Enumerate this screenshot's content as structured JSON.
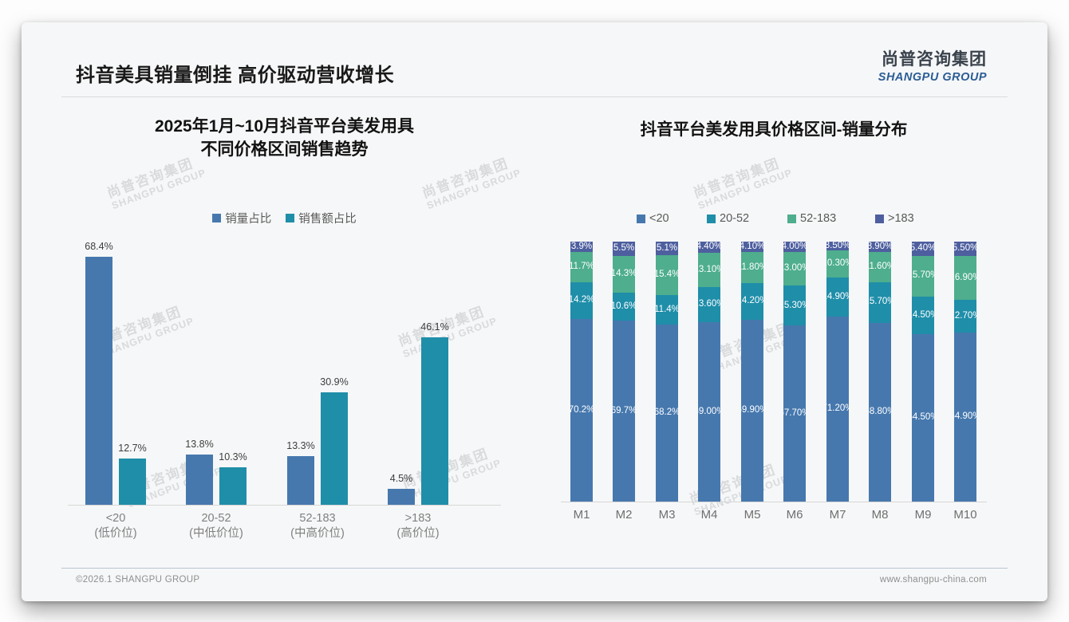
{
  "slide": {
    "title": "抖音美具销量倒挂 高价驱动营收增长",
    "logo": {
      "cn": "尚普咨询集团",
      "en": "SHANGPU GROUP"
    },
    "footer": {
      "left": "©2026.1 SHANGPU GROUP",
      "right": "www.shangpu-china.com"
    },
    "watermark": {
      "line1": "尚普咨询集团",
      "line2": "SHANGPU GROUP"
    }
  },
  "colors": {
    "blue": "#4678AE",
    "teal": "#1F8EA9",
    "green": "#4EAE8D",
    "slate": "#4E5F9F",
    "axis": "#d7d7d7",
    "slide_bg": "#f6f7f8"
  },
  "chart_data": [
    {
      "type": "bar",
      "title_lines": [
        "2025年1月~10月抖音平台美发用具",
        "不同价格区间销售趋势"
      ],
      "categories": [
        "<20",
        "20-52",
        "52-183",
        ">183"
      ],
      "category_sublabels": [
        "(低价位)",
        "(中低价位)",
        "(中高价位)",
        "(高价位)"
      ],
      "series": [
        {
          "name": "销量占比",
          "color": "#4678AE",
          "values": [
            68.4,
            13.8,
            13.3,
            4.5
          ],
          "labels": [
            "68.4%",
            "13.8%",
            "13.3%",
            "4.5%"
          ]
        },
        {
          "name": "销售额占比",
          "color": "#1F8EA9",
          "values": [
            12.7,
            10.3,
            30.9,
            46.1
          ],
          "labels": [
            "12.7%",
            "10.3%",
            "30.9%",
            "46.1%"
          ]
        }
      ],
      "unit": "%",
      "ylim": [
        0,
        75
      ],
      "grid": false,
      "legend_position": "top"
    },
    {
      "type": "stacked-bar-100",
      "title": "抖音平台美发用具价格区间-销量分布",
      "categories": [
        "M1",
        "M2",
        "M3",
        "M4",
        "M5",
        "M6",
        "M7",
        "M8",
        "M9",
        "M10"
      ],
      "series": [
        {
          "name": "<20",
          "color": "#4678AE",
          "values": [
            70.2,
            69.7,
            68.2,
            69.0,
            69.9,
            67.7,
            71.2,
            68.8,
            64.5,
            64.9
          ],
          "labels": [
            "70.2%",
            "69.7%",
            "68.2%",
            "69.00%",
            "69.90%",
            "67.70%",
            "71.20%",
            "68.80%",
            "64.50%",
            "64.90%"
          ]
        },
        {
          "name": "20-52",
          "color": "#1F8EA9",
          "values": [
            14.2,
            10.6,
            11.4,
            13.6,
            14.2,
            15.3,
            14.9,
            15.7,
            14.5,
            12.7
          ],
          "labels": [
            "14.2%",
            "10.6%",
            "11.4%",
            "13.60%",
            "14.20%",
            "15.30%",
            "14.90%",
            "15.70%",
            "14.50%",
            "12.70%"
          ]
        },
        {
          "name": "52-183",
          "color": "#4EAE8D",
          "values": [
            11.7,
            14.3,
            15.4,
            13.1,
            11.8,
            13.0,
            10.3,
            11.6,
            15.7,
            16.9
          ],
          "labels": [
            "11.7%",
            "14.3%",
            "15.4%",
            "13.10%",
            "11.80%",
            "13.00%",
            "10.30%",
            "11.60%",
            "15.70%",
            "16.90%"
          ]
        },
        {
          "name": ">183",
          "color": "#4E5F9F",
          "values": [
            3.9,
            5.5,
            5.1,
            4.4,
            4.1,
            4.0,
            3.5,
            3.9,
            5.4,
            5.5
          ],
          "labels": [
            "3.9%",
            "5.5%",
            "5.1%",
            "4.40%",
            "4.10%",
            "4.00%",
            "3.50%",
            "3.90%",
            "5.40%",
            "5.50%"
          ]
        }
      ],
      "unit": "%",
      "grid": false,
      "legend_position": "top",
      "label_color": "#ffffff"
    }
  ]
}
